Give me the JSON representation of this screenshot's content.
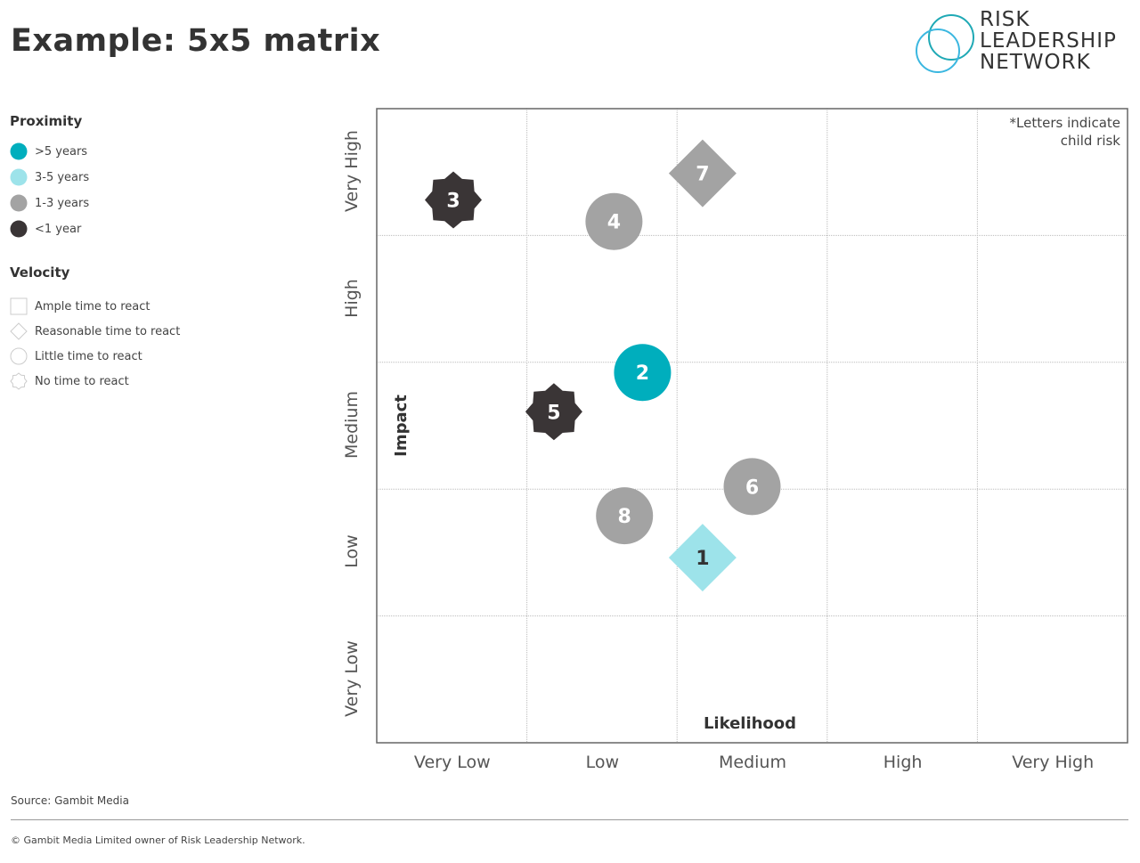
{
  "title": "Example: 5x5 matrix",
  "logo": {
    "lines": [
      "RISK",
      "LEADERSHIP",
      "NETWORK"
    ],
    "colors": [
      "#1fa9b5",
      "#3bb7e0"
    ]
  },
  "legend": {
    "proximity": {
      "title": "Proximity",
      "items": [
        {
          "label": ">5 years",
          "color": "#00aebd"
        },
        {
          "label": "3-5 years",
          "color": "#9de3ea"
        },
        {
          "label": "1-3 years",
          "color": "#a3a3a3"
        },
        {
          "label": "<1 year",
          "color": "#3a3536"
        }
      ]
    },
    "velocity": {
      "title": "Velocity",
      "items": [
        {
          "label": "Ample time to react",
          "shape": "square"
        },
        {
          "label": "Reasonable time to react",
          "shape": "diamond"
        },
        {
          "label": "Little time to react",
          "shape": "circle"
        },
        {
          "label": "No time to react",
          "shape": "star"
        }
      ]
    }
  },
  "chart_data": {
    "type": "scatter",
    "xlabel": "Likelihood",
    "ylabel": "Impact",
    "x_categories": [
      "Very Low",
      "Low",
      "Medium",
      "High",
      "Very High"
    ],
    "y_categories": [
      "Very Low",
      "Low",
      "Medium",
      "High",
      "Very High"
    ],
    "xlim": [
      0,
      5
    ],
    "ylim": [
      0,
      5
    ],
    "grid": true,
    "note": [
      "*Letters indicate",
      "child risk"
    ],
    "points": [
      {
        "label": "1",
        "likelihood": 2.17,
        "impact": 1.46,
        "shape": "diamond",
        "proximity": "3-5 years"
      },
      {
        "label": "2",
        "likelihood": 1.77,
        "impact": 2.92,
        "shape": "circle",
        "proximity": ">5 years"
      },
      {
        "label": "3",
        "likelihood": 0.51,
        "impact": 4.28,
        "shape": "star",
        "proximity": "<1 year"
      },
      {
        "label": "4",
        "likelihood": 1.58,
        "impact": 4.11,
        "shape": "circle",
        "proximity": "1-3 years"
      },
      {
        "label": "5",
        "likelihood": 1.18,
        "impact": 2.61,
        "shape": "star",
        "proximity": "<1 year"
      },
      {
        "label": "6",
        "likelihood": 2.5,
        "impact": 2.02,
        "shape": "circle",
        "proximity": "1-3 years"
      },
      {
        "label": "7",
        "likelihood": 2.17,
        "impact": 4.49,
        "shape": "diamond",
        "proximity": "1-3 years"
      },
      {
        "label": "8",
        "likelihood": 1.65,
        "impact": 1.79,
        "shape": "circle",
        "proximity": "1-3 years"
      }
    ]
  },
  "footer": {
    "source": "Source: Gambit Media",
    "copyright": "© Gambit Media Limited owner of Risk Leadership Network."
  }
}
